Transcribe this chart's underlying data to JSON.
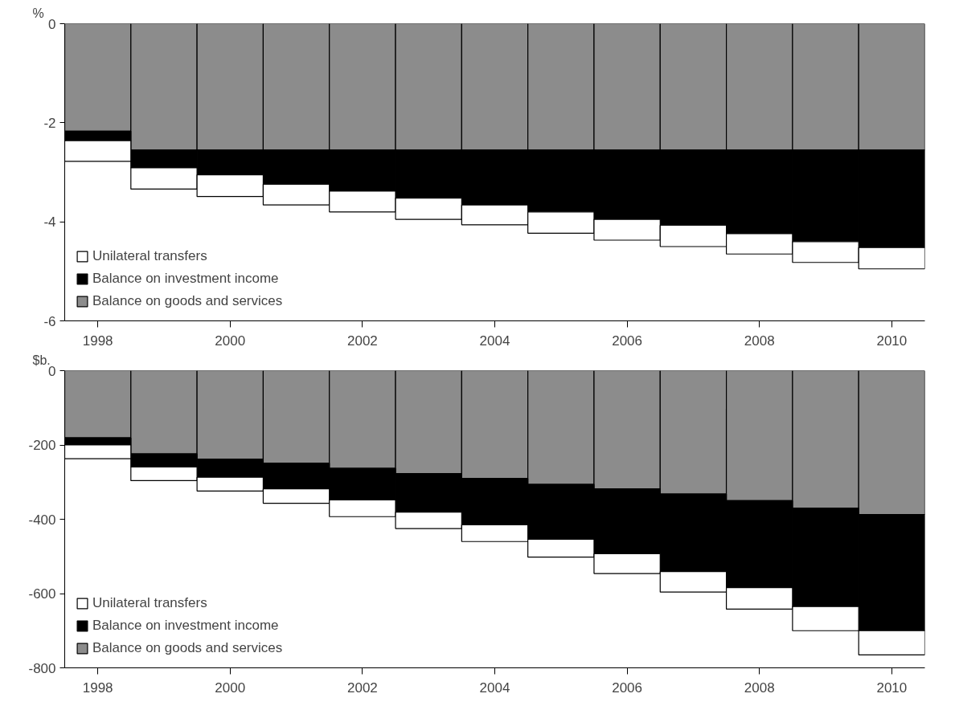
{
  "chart_data": [
    {
      "type": "bar",
      "stacked": true,
      "ylabel": "%",
      "legend": "bottom left",
      "categories": [
        "1998",
        null,
        "2000",
        null,
        "2002",
        null,
        "2004",
        null,
        "2006",
        null,
        "2008",
        null,
        "2010"
      ],
      "ylim": [
        -6,
        0
      ],
      "yticks": [
        -6,
        -4,
        -2,
        0
      ],
      "series": [
        {
          "name": "Balance on goods and services",
          "color": "#8c8c8c",
          "values": [
            -2.17,
            -2.55,
            -2.55,
            -2.55,
            -2.55,
            -2.55,
            -2.55,
            -2.55,
            -2.55,
            -2.55,
            -2.55,
            -2.55,
            -2.55
          ]
        },
        {
          "name": "Balance on investment income",
          "color": "#000000",
          "values": [
            -0.19,
            -0.36,
            -0.5,
            -0.69,
            -0.83,
            -0.97,
            -1.11,
            -1.25,
            -1.4,
            -1.52,
            -1.69,
            -1.85,
            -1.97
          ]
        },
        {
          "name": "Unilateral transfers",
          "color": "#ffffff",
          "values": [
            -0.42,
            -0.43,
            -0.44,
            -0.42,
            -0.42,
            -0.43,
            -0.4,
            -0.43,
            -0.42,
            -0.43,
            -0.41,
            -0.42,
            -0.43
          ]
        }
      ]
    },
    {
      "type": "bar",
      "stacked": true,
      "ylabel": "$b.",
      "legend": "bottom left",
      "categories": [
        "1998",
        null,
        "2000",
        null,
        "2002",
        null,
        "2004",
        null,
        "2006",
        null,
        "2008",
        null,
        "2010"
      ],
      "ylim": [
        -800,
        0
      ],
      "yticks": [
        -800,
        -600,
        -400,
        -200,
        0
      ],
      "series": [
        {
          "name": "Balance on goods and services",
          "color": "#8c8c8c",
          "values": [
            -181,
            -224,
            -238,
            -249,
            -263,
            -277,
            -290,
            -306,
            -318,
            -332,
            -350,
            -370,
            -387
          ]
        },
        {
          "name": "Balance on investment income",
          "color": "#000000",
          "values": [
            -19,
            -35,
            -49,
            -69,
            -85,
            -104,
            -125,
            -148,
            -175,
            -209,
            -234,
            -265,
            -313
          ]
        },
        {
          "name": "Unilateral transfers",
          "color": "#ffffff",
          "values": [
            -37,
            -37,
            -37,
            -39,
            -45,
            -44,
            -45,
            -48,
            -53,
            -55,
            -58,
            -65,
            -65
          ]
        }
      ]
    }
  ]
}
